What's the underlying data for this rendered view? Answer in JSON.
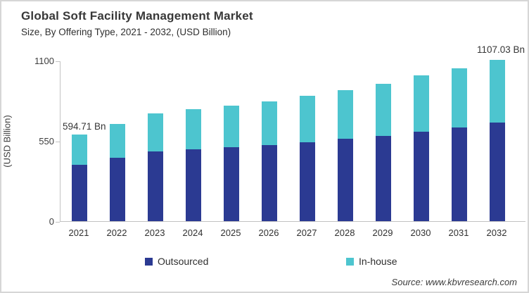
{
  "figure": {
    "title": "Global Soft Facility Management Market",
    "subtitle": "Size, By Offering Type, 2021 - 2032, (USD Billion)",
    "source": "Source: www.kbvresearch.com"
  },
  "chart_data": {
    "type": "bar",
    "stacked": true,
    "title": "Global Soft Facility Management Market Size, By Offering Type, 2021 - 2032, (USD Billion)",
    "xlabel": "",
    "ylabel": "(USD Billion)",
    "ylim": [
      0,
      1100
    ],
    "ytick_labels": [
      "1100",
      "550",
      "0"
    ],
    "grid": false,
    "legend_position": "bottom",
    "categories": [
      "2021",
      "2022",
      "2023",
      "2024",
      "2025",
      "2026",
      "2027",
      "2028",
      "2029",
      "2030",
      "2031",
      "2032"
    ],
    "series": [
      {
        "name": "Outsourced",
        "color": "#2b3a92",
        "values": [
          386,
          432,
          477,
          490,
          505,
          521,
          539,
          563,
          585,
          614,
          642,
          674
        ]
      },
      {
        "name": "In-house",
        "color": "#4dc5cf",
        "values": [
          208.71,
          236,
          261,
          276,
          286,
          299,
          320,
          336,
          356,
          384,
          404,
          433.03
        ]
      }
    ],
    "totals": [
      594.71,
      668,
      738,
      766,
      791,
      820,
      859,
      899,
      941,
      998,
      1046,
      1107.03
    ],
    "annotations": [
      {
        "category": "2021",
        "label": "594.71 Bn"
      },
      {
        "category": "2032",
        "label": "1107.03 Bn"
      }
    ]
  }
}
